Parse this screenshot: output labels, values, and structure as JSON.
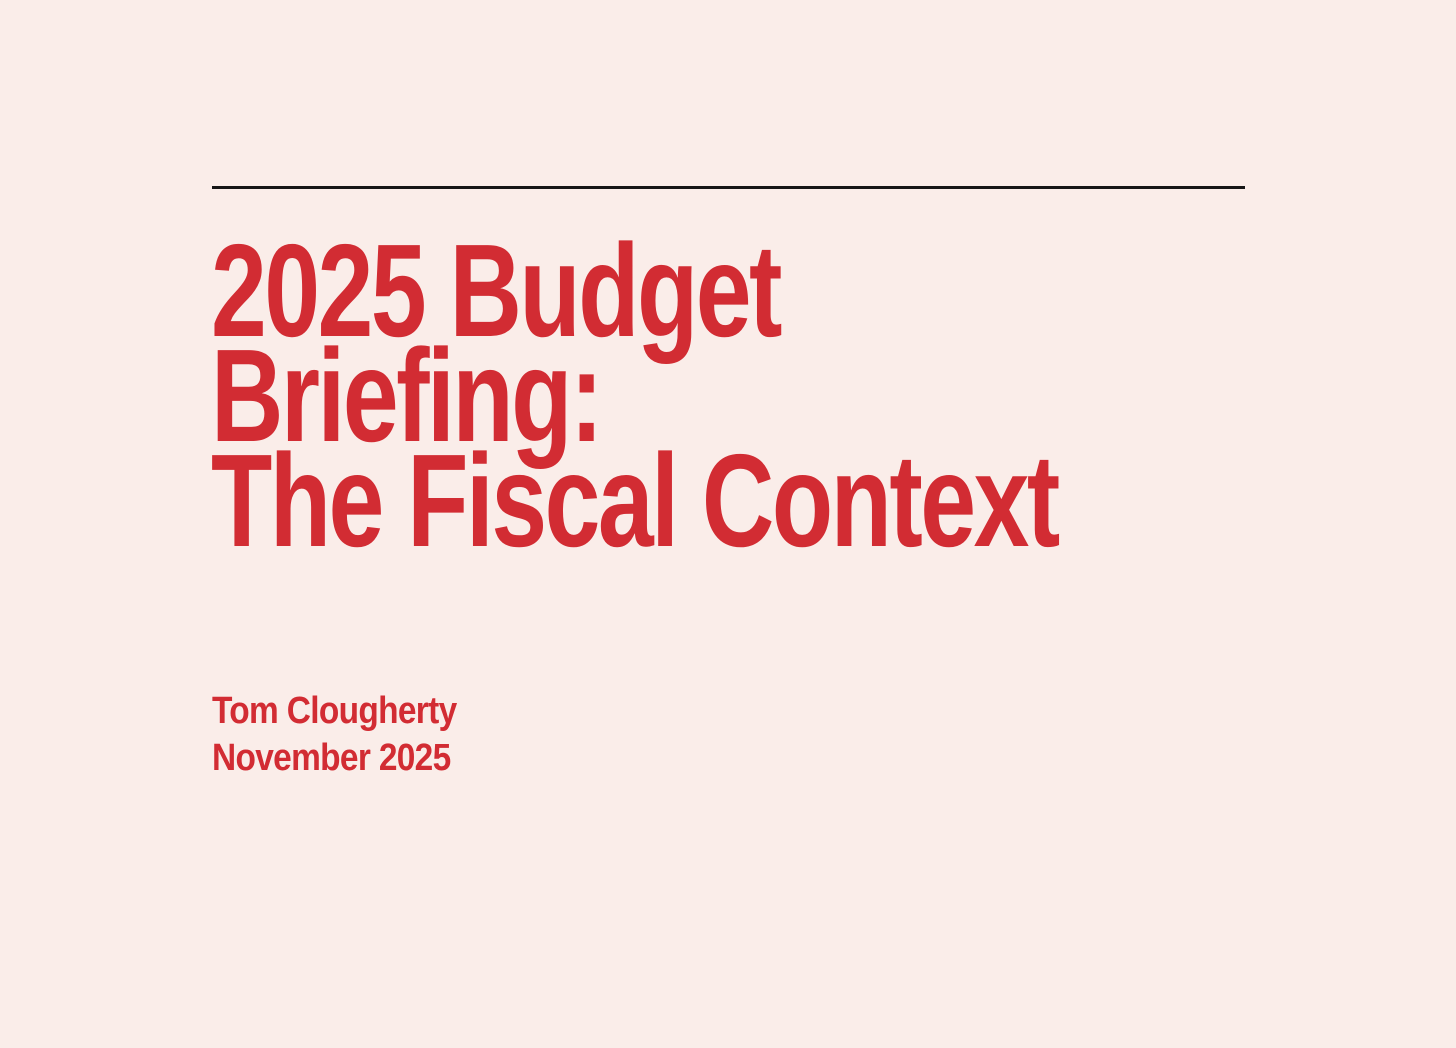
{
  "slide": {
    "background_color": "#faede9",
    "accent_color": "#d22c33",
    "rule_color": "#161616",
    "title_lines": [
      "2025 Budget",
      "Briefing:",
      "The Fiscal Context"
    ],
    "author": "Tom Clougherty",
    "date": "November 2025"
  }
}
